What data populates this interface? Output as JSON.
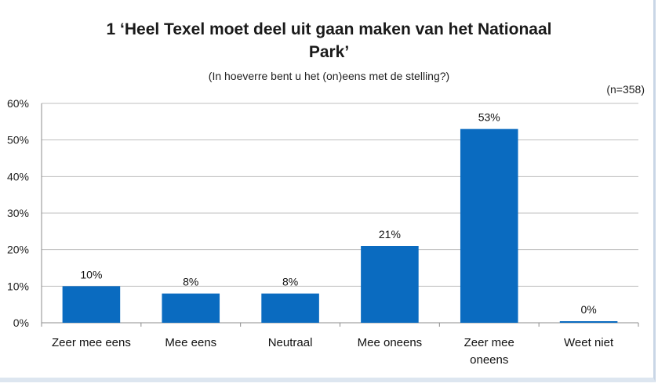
{
  "chart_data": {
    "type": "bar",
    "title_line1": "1 ‘Heel Texel moet deel uit gaan maken van het Nationaal",
    "title_line2": "Park’",
    "subtitle": "(In hoeverre bent u het (on)eens met de stelling?)",
    "sample_note": "(n=358)",
    "categories": [
      [
        "Zeer mee eens"
      ],
      [
        "Mee eens"
      ],
      [
        "Neutraal"
      ],
      [
        "Mee oneens"
      ],
      [
        "Zeer mee",
        "oneens"
      ],
      [
        "Weet niet"
      ]
    ],
    "values": [
      10,
      8,
      8,
      21,
      53,
      0
    ],
    "data_labels": [
      "10%",
      "8%",
      "8%",
      "21%",
      "53%",
      "0%"
    ],
    "ylim": [
      0,
      60
    ],
    "yticks": [
      0,
      10,
      20,
      30,
      40,
      50,
      60
    ],
    "ytick_labels": [
      "0%",
      "10%",
      "20%",
      "30%",
      "40%",
      "50%",
      "60%"
    ],
    "bar_color": "#0a6bc0",
    "grid": true,
    "xlabel": "",
    "ylabel": ""
  }
}
